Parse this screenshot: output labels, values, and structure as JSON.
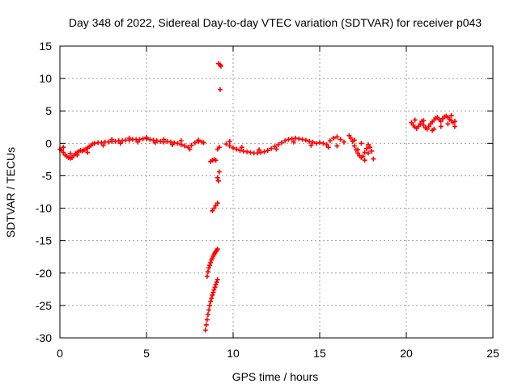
{
  "chart_data": {
    "type": "scatter",
    "title": "Day 348 of 2022, Sidereal Day-to-day VTEC variation (SDTVAR) for receiver p043",
    "xlabel": "GPS time / hours",
    "ylabel": "SDTVAR / TECUs",
    "xlim": [
      0,
      25
    ],
    "ylim": [
      -30,
      15
    ],
    "x_ticks": [
      0,
      5,
      10,
      15,
      20,
      25
    ],
    "y_ticks": [
      15,
      10,
      5,
      0,
      -5,
      -10,
      -15,
      -20,
      -25,
      -30
    ],
    "grid": true,
    "marker": "+",
    "series": [
      {
        "name": "SDTVAR",
        "color": "#ff0000",
        "points": [
          [
            0.0,
            -0.9
          ],
          [
            0.1,
            -1.1
          ],
          [
            0.2,
            -1.4
          ],
          [
            0.3,
            -1.8
          ],
          [
            0.4,
            -2.0
          ],
          [
            0.5,
            -2.2
          ],
          [
            0.6,
            -2.3
          ],
          [
            0.7,
            -2.2
          ],
          [
            0.8,
            -1.9
          ],
          [
            0.9,
            -1.6
          ],
          [
            1.0,
            -1.4
          ],
          [
            1.1,
            -1.2
          ],
          [
            1.2,
            -1.1
          ],
          [
            1.3,
            -1.2
          ],
          [
            1.4,
            -1.0
          ],
          [
            1.5,
            -0.9
          ],
          [
            1.6,
            -0.7
          ],
          [
            1.7,
            -0.5
          ],
          [
            1.8,
            -0.3
          ],
          [
            1.9,
            -0.1
          ],
          [
            2.0,
            0.0
          ],
          [
            2.2,
            0.1
          ],
          [
            2.4,
            0.1
          ],
          [
            2.6,
            0.2
          ],
          [
            2.8,
            0.2
          ],
          [
            3.0,
            0.3
          ],
          [
            3.2,
            0.3
          ],
          [
            3.4,
            0.4
          ],
          [
            3.6,
            0.4
          ],
          [
            3.8,
            0.5
          ],
          [
            4.0,
            0.5
          ],
          [
            4.2,
            0.6
          ],
          [
            4.4,
            0.6
          ],
          [
            4.6,
            0.6
          ],
          [
            4.8,
            0.7
          ],
          [
            5.0,
            0.7
          ],
          [
            5.2,
            0.6
          ],
          [
            5.4,
            0.5
          ],
          [
            5.6,
            0.4
          ],
          [
            5.8,
            0.3
          ],
          [
            6.0,
            0.2
          ],
          [
            6.2,
            0.3
          ],
          [
            6.4,
            0.2
          ],
          [
            6.6,
            0.1
          ],
          [
            6.8,
            0.0
          ],
          [
            7.0,
            -0.2
          ],
          [
            7.2,
            -0.4
          ],
          [
            7.4,
            -0.6
          ],
          [
            7.6,
            -0.3
          ],
          [
            7.8,
            0.1
          ],
          [
            8.0,
            0.3
          ],
          [
            8.2,
            0.2
          ],
          [
            8.3,
            0.1
          ],
          [
            0.2,
            -0.6
          ],
          [
            0.6,
            -1.6
          ],
          [
            1.0,
            -1.8
          ],
          [
            1.6,
            -1.4
          ],
          [
            2.5,
            -0.3
          ],
          [
            3.5,
            0.0
          ],
          [
            4.5,
            0.2
          ],
          [
            5.5,
            0.1
          ],
          [
            6.5,
            -0.2
          ],
          [
            7.5,
            -0.9
          ],
          [
            3.0,
            0.6
          ],
          [
            4.0,
            0.8
          ],
          [
            5.0,
            0.9
          ],
          [
            6.0,
            0.6
          ],
          [
            7.0,
            0.4
          ],
          [
            8.0,
            0.5
          ],
          [
            8.5,
            -20.5
          ],
          [
            8.55,
            -19.8
          ],
          [
            8.6,
            -19.2
          ],
          [
            8.65,
            -18.8
          ],
          [
            8.7,
            -18.4
          ],
          [
            8.75,
            -18.0
          ],
          [
            8.8,
            -17.7
          ],
          [
            8.85,
            -17.4
          ],
          [
            8.9,
            -17.1
          ],
          [
            8.95,
            -16.9
          ],
          [
            9.0,
            -16.7
          ],
          [
            9.05,
            -16.5
          ],
          [
            9.1,
            -16.3
          ],
          [
            8.4,
            -28.8
          ],
          [
            8.45,
            -28.0
          ],
          [
            8.5,
            -27.2
          ],
          [
            8.55,
            -26.4
          ],
          [
            8.6,
            -25.7
          ],
          [
            8.65,
            -25.0
          ],
          [
            8.7,
            -24.4
          ],
          [
            8.75,
            -23.9
          ],
          [
            8.8,
            -23.4
          ],
          [
            8.85,
            -23.0
          ],
          [
            8.9,
            -22.6
          ],
          [
            8.95,
            -22.2
          ],
          [
            9.0,
            -21.8
          ],
          [
            9.05,
            -21.4
          ],
          [
            9.1,
            -21.0
          ],
          [
            8.8,
            -10.4
          ],
          [
            8.9,
            -10.0
          ],
          [
            9.0,
            -9.6
          ],
          [
            9.1,
            -9.2
          ],
          [
            9.1,
            -5.3
          ],
          [
            9.15,
            -5.8
          ],
          [
            9.2,
            -4.4
          ],
          [
            8.7,
            -2.8
          ],
          [
            8.8,
            -2.6
          ],
          [
            8.9,
            -2.5
          ],
          [
            9.0,
            -2.6
          ],
          [
            9.1,
            -0.9
          ],
          [
            9.2,
            -0.6
          ],
          [
            9.15,
            12.3
          ],
          [
            9.25,
            12.1
          ],
          [
            9.3,
            11.9
          ],
          [
            9.25,
            8.3
          ],
          [
            9.6,
            -0.1
          ],
          [
            9.8,
            -0.4
          ],
          [
            10.0,
            -0.7
          ],
          [
            10.2,
            -0.9
          ],
          [
            10.4,
            -1.1
          ],
          [
            10.6,
            -1.2
          ],
          [
            10.8,
            -1.3
          ],
          [
            11.0,
            -1.4
          ],
          [
            11.2,
            -1.5
          ],
          [
            11.4,
            -1.5
          ],
          [
            11.6,
            -1.4
          ],
          [
            11.8,
            -1.3
          ],
          [
            12.0,
            -1.1
          ],
          [
            12.2,
            -0.8
          ],
          [
            12.4,
            -0.5
          ],
          [
            12.6,
            -0.2
          ],
          [
            12.8,
            0.1
          ],
          [
            13.0,
            0.4
          ],
          [
            13.2,
            0.6
          ],
          [
            13.4,
            0.7
          ],
          [
            13.6,
            0.8
          ],
          [
            13.8,
            0.7
          ],
          [
            14.0,
            0.6
          ],
          [
            14.2,
            0.5
          ],
          [
            14.4,
            0.3
          ],
          [
            14.6,
            0.2
          ],
          [
            14.8,
            0.0
          ],
          [
            15.0,
            0.1
          ],
          [
            15.2,
            0.0
          ],
          [
            15.4,
            -0.2
          ],
          [
            15.6,
            0.4
          ],
          [
            15.8,
            0.8
          ],
          [
            16.0,
            1.0
          ],
          [
            16.2,
            0.6
          ],
          [
            16.4,
            0.2
          ],
          [
            9.8,
            0.3
          ],
          [
            10.5,
            -0.6
          ],
          [
            11.5,
            -1.0
          ],
          [
            12.5,
            -0.9
          ],
          [
            13.5,
            0.2
          ],
          [
            14.5,
            -0.3
          ],
          [
            15.5,
            -0.6
          ],
          [
            16.0,
            -0.4
          ],
          [
            16.7,
            1.2
          ],
          [
            16.8,
            0.8
          ],
          [
            16.9,
            0.3
          ],
          [
            17.0,
            -0.4
          ],
          [
            17.1,
            -1.0
          ],
          [
            17.2,
            -1.5
          ],
          [
            17.3,
            -1.9
          ],
          [
            17.4,
            -2.2
          ],
          [
            17.5,
            -2.0
          ],
          [
            17.6,
            -1.4
          ],
          [
            17.7,
            -0.8
          ],
          [
            17.8,
            -0.2
          ],
          [
            17.9,
            -0.6
          ],
          [
            18.0,
            -1.2
          ],
          [
            18.1,
            -2.4
          ],
          [
            17.6,
            -2.6
          ],
          [
            17.2,
            -1.0
          ],
          [
            17.0,
            0.5
          ],
          [
            17.4,
            0.0
          ],
          [
            17.8,
            -1.5
          ],
          [
            20.3,
            3.2
          ],
          [
            20.4,
            2.8
          ],
          [
            20.5,
            2.5
          ],
          [
            20.6,
            2.3
          ],
          [
            20.7,
            2.6
          ],
          [
            20.8,
            3.0
          ],
          [
            20.9,
            3.4
          ],
          [
            21.0,
            2.8
          ],
          [
            21.1,
            2.4
          ],
          [
            21.2,
            2.2
          ],
          [
            21.3,
            2.6
          ],
          [
            21.4,
            3.0
          ],
          [
            21.5,
            3.3
          ],
          [
            21.6,
            3.6
          ],
          [
            21.7,
            3.9
          ],
          [
            21.8,
            4.0
          ],
          [
            21.9,
            3.7
          ],
          [
            22.0,
            3.4
          ],
          [
            22.1,
            3.8
          ],
          [
            22.2,
            4.1
          ],
          [
            22.3,
            4.2
          ],
          [
            22.4,
            4.0
          ],
          [
            22.5,
            3.7
          ],
          [
            22.6,
            3.5
          ],
          [
            22.7,
            3.2
          ],
          [
            22.8,
            3.4
          ],
          [
            21.6,
            2.2
          ],
          [
            22.0,
            2.6
          ],
          [
            22.4,
            3.0
          ],
          [
            22.8,
            2.6
          ],
          [
            21.0,
            3.5
          ],
          [
            21.5,
            2.0
          ],
          [
            22.6,
            4.3
          ],
          [
            20.5,
            3.6
          ]
        ]
      }
    ]
  }
}
